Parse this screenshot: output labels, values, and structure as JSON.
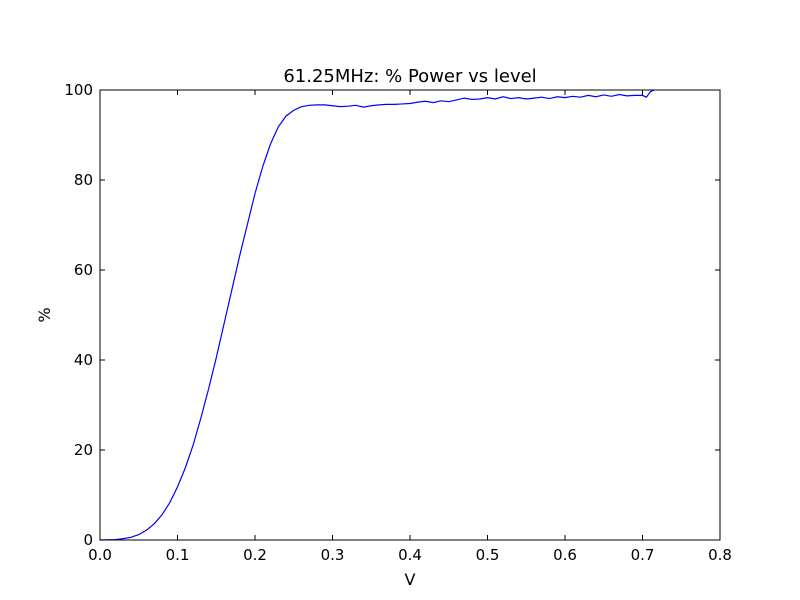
{
  "chart_data": {
    "type": "line",
    "title": "61.25MHz: % Power vs level",
    "xlabel": "V",
    "ylabel": "%",
    "xlim": [
      0.0,
      0.8
    ],
    "ylim": [
      0,
      100
    ],
    "xticks": [
      "0.0",
      "0.1",
      "0.2",
      "0.3",
      "0.4",
      "0.5",
      "0.6",
      "0.7",
      "0.8"
    ],
    "yticks": [
      "0",
      "20",
      "40",
      "60",
      "80",
      "100"
    ],
    "grid": false,
    "colors": {
      "line": "#0000ff",
      "axes": "#000000",
      "background": "#ffffff"
    },
    "series": [
      {
        "x": [
          0.0,
          0.02,
          0.03,
          0.04,
          0.05,
          0.06,
          0.07,
          0.08,
          0.09,
          0.1,
          0.11,
          0.12,
          0.13,
          0.14,
          0.15,
          0.16,
          0.17,
          0.18,
          0.19,
          0.2,
          0.21,
          0.22,
          0.23,
          0.24,
          0.25,
          0.26,
          0.27,
          0.28,
          0.29,
          0.3,
          0.31,
          0.32,
          0.33,
          0.34,
          0.35,
          0.36,
          0.37,
          0.38,
          0.39,
          0.4,
          0.41,
          0.42,
          0.43,
          0.44,
          0.45,
          0.46,
          0.47,
          0.48,
          0.49,
          0.5,
          0.51,
          0.52,
          0.53,
          0.54,
          0.55,
          0.56,
          0.57,
          0.58,
          0.59,
          0.6,
          0.61,
          0.62,
          0.63,
          0.64,
          0.65,
          0.66,
          0.67,
          0.68,
          0.69,
          0.7,
          0.705,
          0.71,
          0.715
        ],
        "values": [
          0.0,
          0.1,
          0.3,
          0.6,
          1.2,
          2.2,
          3.6,
          5.6,
          8.3,
          11.8,
          16.0,
          21.0,
          27.0,
          33.5,
          40.5,
          48.0,
          55.5,
          63.0,
          70.0,
          77.0,
          83.0,
          88.0,
          91.8,
          94.2,
          95.5,
          96.3,
          96.6,
          96.7,
          96.7,
          96.5,
          96.3,
          96.4,
          96.6,
          96.2,
          96.5,
          96.7,
          96.8,
          96.8,
          96.9,
          97.0,
          97.3,
          97.5,
          97.2,
          97.6,
          97.4,
          97.8,
          98.2,
          97.9,
          98.0,
          98.3,
          98.0,
          98.5,
          98.1,
          98.3,
          98.0,
          98.2,
          98.4,
          98.1,
          98.5,
          98.3,
          98.6,
          98.4,
          98.8,
          98.5,
          98.9,
          98.6,
          99.0,
          98.7,
          98.8,
          98.8,
          98.4,
          99.6,
          100.0
        ]
      }
    ]
  }
}
